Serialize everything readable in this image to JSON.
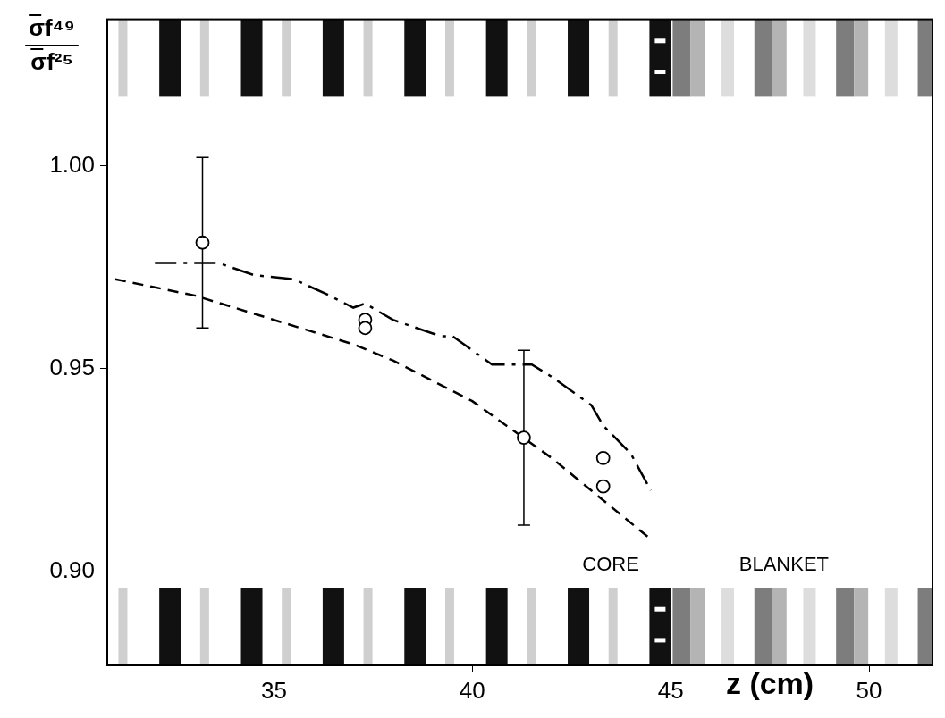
{
  "chart_data": {
    "type": "line",
    "ylabel": {
      "numerator": "σf⁴⁹",
      "denominator": "σf²⁵"
    },
    "xlabel": "z (cm)",
    "annotations": [
      "CORE",
      "BLANKET"
    ],
    "xlim": [
      30.8,
      51.6
    ],
    "xticks": [
      35,
      40,
      45,
      50
    ],
    "ylim": [
      0.877,
      1.036
    ],
    "yticks": [
      {
        "value": 0.9,
        "label": "0.90"
      },
      0.95,
      {
        "value": 1,
        "label": "1.00"
      }
    ],
    "grid": false,
    "series": [
      {
        "type": "scatter",
        "marker": "open circle",
        "color": "#000000",
        "x": [
          33.2,
          37.3,
          37.3,
          41.3,
          43.3,
          43.3
        ],
        "values": [
          0.981,
          0.962,
          0.96,
          0.933,
          0.928,
          0.921
        ],
        "errors": [
          0.021,
          null,
          null,
          0.0215,
          null,
          null
        ]
      },
      {
        "type": "line",
        "line_style": "dashed",
        "color": "#000000",
        "x": [
          31,
          32,
          33,
          34,
          35,
          36,
          37,
          38,
          39,
          40,
          41,
          42,
          43,
          44,
          44.5
        ],
        "values": [
          0.972,
          0.97,
          0.968,
          0.965,
          0.962,
          0.959,
          0.956,
          0.952,
          0.947,
          0.942,
          0.935,
          0.928,
          0.92,
          0.912,
          0.908
        ]
      },
      {
        "type": "line",
        "line_style": "dashdot",
        "color": "#000000",
        "x": [
          32,
          33.6,
          34.5,
          35.5,
          36.4,
          37,
          37.3,
          38,
          39.2,
          39.5,
          40.5,
          41.5,
          42,
          43,
          43.3,
          44,
          44.5
        ],
        "values": [
          0.976,
          0.976,
          0.973,
          0.972,
          0.968,
          0.965,
          0.966,
          0.962,
          0.958,
          0.958,
          0.951,
          0.951,
          0.948,
          0.941,
          0.936,
          0.929,
          0.92
        ]
      }
    ]
  }
}
